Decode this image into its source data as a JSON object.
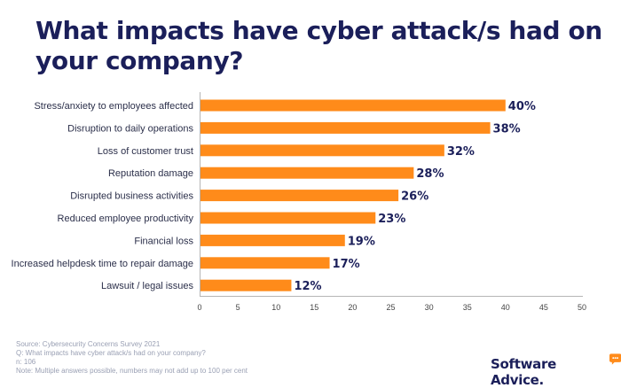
{
  "title": "What impacts have cyber attack/s had on your company?",
  "chart_data": {
    "type": "bar",
    "orientation": "horizontal",
    "categories": [
      "Stress/anxiety to employees affected",
      "Disruption to daily operations",
      "Loss of customer trust",
      "Reputation damage",
      "Disrupted business activities",
      "Reduced employee productivity",
      "Financial loss",
      "Increased helpdesk time to repair damage",
      "Lawsuit / legal issues"
    ],
    "values": [
      40,
      38,
      32,
      28,
      26,
      23,
      19,
      17,
      12
    ],
    "value_labels": [
      "40%",
      "38%",
      "32%",
      "28%",
      "26%",
      "23%",
      "19%",
      "17%",
      "12%"
    ],
    "xticks": [
      "0",
      "5",
      "10",
      "15",
      "20",
      "25",
      "30",
      "35",
      "40",
      "45",
      "50"
    ],
    "xlim": [
      0,
      50
    ],
    "grid": false,
    "bar_color": "#ff8b1a"
  },
  "footnotes": [
    "Source: Cybersecurity Concerns Survey 2021",
    "Q: What impacts have cyber attack/s had on your company?",
    "n: 106",
    "Note: Multiple answers possible, numbers may not add up to 100 per cent"
  ],
  "brand": {
    "name": "Software Advice.",
    "accent": "#ff8b1a",
    "mark_icon": "speech-bubble-icon"
  }
}
